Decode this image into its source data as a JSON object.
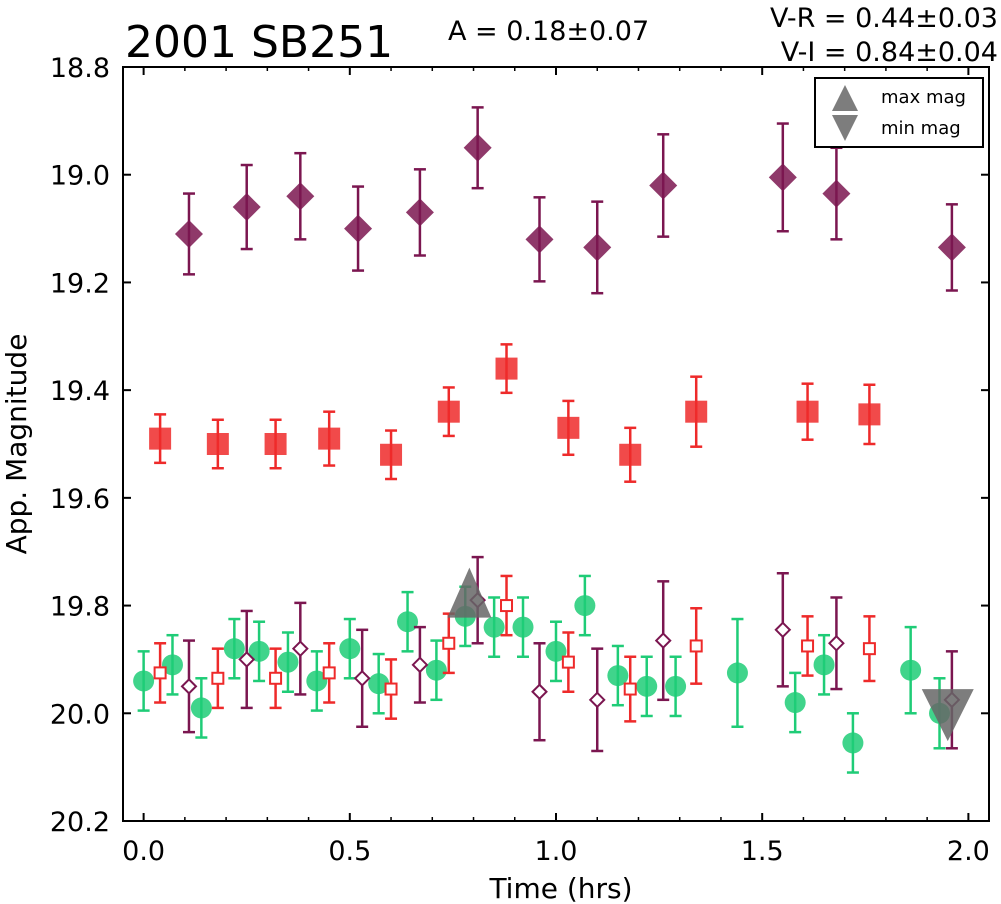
{
  "chart_data": {
    "type": "scatter",
    "title": "2001 SB251",
    "amplitude_label": "A  = 0.18±0.07",
    "color_labels": [
      "V-R = 0.44±0.03",
      "V-I  = 0.84±0.04"
    ],
    "xlabel": "Time (hrs)",
    "ylabel": "App. Magnitude",
    "xlim": [
      -0.05,
      2.05
    ],
    "ylim": [
      20.2,
      18.8
    ],
    "y_inverted": true,
    "x_ticks": [
      "0.0",
      "0.5",
      "1.0",
      "1.5",
      "2.0"
    ],
    "y_ticks": [
      "18.8",
      "19.0",
      "19.2",
      "19.4",
      "19.6",
      "19.8",
      "20.0",
      "20.2"
    ],
    "grid": false,
    "legend_position": "top-right",
    "legend": [
      {
        "label": "max mag",
        "marker": "triangle-up"
      },
      {
        "label": "min mag",
        "marker": "triangle-down"
      }
    ],
    "colors": {
      "purple": "#7b1650",
      "red": "#ee2a2a",
      "green": "#1fcc77",
      "gray": "#666666"
    },
    "series": [
      {
        "marker": "diamond-filled",
        "color": "#7b1650",
        "points": [
          {
            "x": 0.11,
            "y": 19.11,
            "err": 0.075
          },
          {
            "x": 0.25,
            "y": 19.06,
            "err": 0.078
          },
          {
            "x": 0.38,
            "y": 19.04,
            "err": 0.08
          },
          {
            "x": 0.52,
            "y": 19.1,
            "err": 0.078
          },
          {
            "x": 0.67,
            "y": 19.07,
            "err": 0.08
          },
          {
            "x": 0.81,
            "y": 18.95,
            "err": 0.075
          },
          {
            "x": 0.96,
            "y": 19.12,
            "err": 0.078
          },
          {
            "x": 1.1,
            "y": 19.135,
            "err": 0.085
          },
          {
            "x": 1.26,
            "y": 19.02,
            "err": 0.095
          },
          {
            "x": 1.55,
            "y": 19.005,
            "err": 0.1
          },
          {
            "x": 1.68,
            "y": 19.035,
            "err": 0.085
          },
          {
            "x": 1.96,
            "y": 19.135,
            "err": 0.08
          }
        ]
      },
      {
        "marker": "square-filled",
        "color": "#ee2a2a",
        "points": [
          {
            "x": 0.04,
            "y": 19.49,
            "err": 0.045
          },
          {
            "x": 0.18,
            "y": 19.5,
            "err": 0.045
          },
          {
            "x": 0.32,
            "y": 19.5,
            "err": 0.045
          },
          {
            "x": 0.45,
            "y": 19.49,
            "err": 0.05
          },
          {
            "x": 0.6,
            "y": 19.52,
            "err": 0.045
          },
          {
            "x": 0.74,
            "y": 19.44,
            "err": 0.045
          },
          {
            "x": 0.88,
            "y": 19.36,
            "err": 0.045
          },
          {
            "x": 1.03,
            "y": 19.47,
            "err": 0.05
          },
          {
            "x": 1.18,
            "y": 19.52,
            "err": 0.05
          },
          {
            "x": 1.34,
            "y": 19.44,
            "err": 0.065
          },
          {
            "x": 1.61,
            "y": 19.44,
            "err": 0.052
          },
          {
            "x": 1.76,
            "y": 19.445,
            "err": 0.055
          }
        ]
      },
      {
        "marker": "circle-filled",
        "color": "#1fcc77",
        "points": [
          {
            "x": 0.0,
            "y": 19.94,
            "err": 0.055
          },
          {
            "x": 0.07,
            "y": 19.91,
            "err": 0.055
          },
          {
            "x": 0.14,
            "y": 19.99,
            "err": 0.055
          },
          {
            "x": 0.22,
            "y": 19.88,
            "err": 0.055
          },
          {
            "x": 0.28,
            "y": 19.885,
            "err": 0.055
          },
          {
            "x": 0.35,
            "y": 19.905,
            "err": 0.055
          },
          {
            "x": 0.42,
            "y": 19.94,
            "err": 0.055
          },
          {
            "x": 0.5,
            "y": 19.88,
            "err": 0.055
          },
          {
            "x": 0.57,
            "y": 19.945,
            "err": 0.055
          },
          {
            "x": 0.64,
            "y": 19.83,
            "err": 0.055
          },
          {
            "x": 0.71,
            "y": 19.92,
            "err": 0.055
          },
          {
            "x": 0.78,
            "y": 19.82,
            "err": 0.055
          },
          {
            "x": 0.85,
            "y": 19.84,
            "err": 0.055
          },
          {
            "x": 0.92,
            "y": 19.84,
            "err": 0.055
          },
          {
            "x": 1.0,
            "y": 19.885,
            "err": 0.055
          },
          {
            "x": 1.07,
            "y": 19.8,
            "err": 0.055
          },
          {
            "x": 1.15,
            "y": 19.93,
            "err": 0.055
          },
          {
            "x": 1.22,
            "y": 19.95,
            "err": 0.055
          },
          {
            "x": 1.29,
            "y": 19.95,
            "err": 0.055
          },
          {
            "x": 1.44,
            "y": 19.925,
            "err": 0.1
          },
          {
            "x": 1.58,
            "y": 19.98,
            "err": 0.055
          },
          {
            "x": 1.65,
            "y": 19.91,
            "err": 0.055
          },
          {
            "x": 1.72,
            "y": 20.055,
            "err": 0.055
          },
          {
            "x": 1.86,
            "y": 19.92,
            "err": 0.08
          },
          {
            "x": 1.93,
            "y": 20.0,
            "err": 0.065
          }
        ]
      },
      {
        "marker": "diamond-open",
        "color": "#7b1650",
        "points": [
          {
            "x": 0.11,
            "y": 19.95,
            "err": 0.085
          },
          {
            "x": 0.25,
            "y": 19.9,
            "err": 0.09
          },
          {
            "x": 0.38,
            "y": 19.88,
            "err": 0.085
          },
          {
            "x": 0.53,
            "y": 19.935,
            "err": 0.09
          },
          {
            "x": 0.67,
            "y": 19.91,
            "err": 0.07
          },
          {
            "x": 0.81,
            "y": 19.79,
            "err": 0.08
          },
          {
            "x": 0.96,
            "y": 19.96,
            "err": 0.09
          },
          {
            "x": 1.1,
            "y": 19.975,
            "err": 0.095
          },
          {
            "x": 1.26,
            "y": 19.865,
            "err": 0.11
          },
          {
            "x": 1.55,
            "y": 19.845,
            "err": 0.105
          },
          {
            "x": 1.68,
            "y": 19.87,
            "err": 0.085
          },
          {
            "x": 1.96,
            "y": 19.975,
            "err": 0.09
          }
        ]
      },
      {
        "marker": "square-open",
        "color": "#ee2a2a",
        "points": [
          {
            "x": 0.04,
            "y": 19.925,
            "err": 0.055
          },
          {
            "x": 0.18,
            "y": 19.935,
            "err": 0.055
          },
          {
            "x": 0.32,
            "y": 19.935,
            "err": 0.055
          },
          {
            "x": 0.45,
            "y": 19.925,
            "err": 0.055
          },
          {
            "x": 0.6,
            "y": 19.955,
            "err": 0.055
          },
          {
            "x": 0.74,
            "y": 19.87,
            "err": 0.055
          },
          {
            "x": 0.88,
            "y": 19.8,
            "err": 0.055
          },
          {
            "x": 1.03,
            "y": 19.905,
            "err": 0.055
          },
          {
            "x": 1.18,
            "y": 19.955,
            "err": 0.06
          },
          {
            "x": 1.34,
            "y": 19.875,
            "err": 0.07
          },
          {
            "x": 1.61,
            "y": 19.875,
            "err": 0.055
          },
          {
            "x": 1.76,
            "y": 19.88,
            "err": 0.06
          }
        ]
      }
    ],
    "extremes": [
      {
        "label": "max mag",
        "marker": "triangle-up",
        "x": 0.79,
        "y": 19.8
      },
      {
        "label": "min mag",
        "marker": "triangle-down",
        "x": 1.95,
        "y": 19.97
      }
    ]
  }
}
